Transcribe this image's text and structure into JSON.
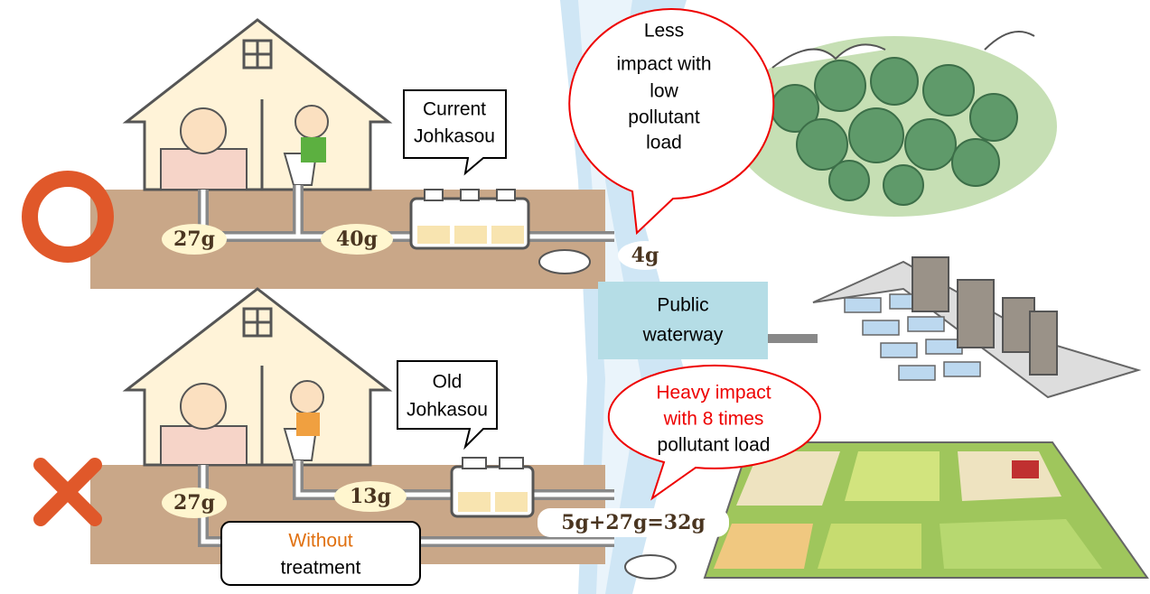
{
  "top_row": {
    "callout": [
      "Current",
      "Johkasou"
    ],
    "bubble": [
      "Less",
      "impact with",
      "low",
      "pollutant",
      "load"
    ],
    "loads": [
      "27g",
      "40g",
      "4g"
    ]
  },
  "waterway": [
    "Public",
    "waterway"
  ],
  "bottom_row": {
    "callout": [
      "Old",
      "Johkasou"
    ],
    "bubble": [
      "Heavy impact",
      "with 8 times",
      "pollutant load"
    ],
    "loads": [
      "27g",
      "13g",
      "5g+27g=32g"
    ],
    "untreated": [
      "Without",
      "treatment"
    ]
  }
}
